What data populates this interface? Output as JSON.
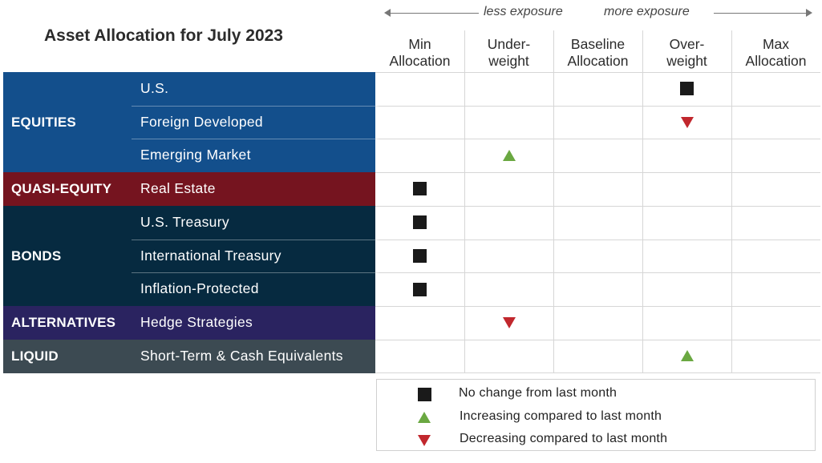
{
  "title": "Asset Allocation for July 2023",
  "exposure": {
    "less": "less exposure",
    "more": "more exposure"
  },
  "columns": [
    {
      "line1": "Min",
      "line2": "Allocation"
    },
    {
      "line1": "Under-",
      "line2": "weight"
    },
    {
      "line1": "Baseline",
      "line2": "Allocation"
    },
    {
      "line1": "Over-",
      "line2": "weight"
    },
    {
      "line1": "Max",
      "line2": "Allocation"
    }
  ],
  "categories": [
    {
      "label": "EQUITIES",
      "color": "#134f8c",
      "row_start": 0,
      "row_count": 3
    },
    {
      "label": "QUASI-EQUITY",
      "color": "#75141f",
      "row_start": 3,
      "row_count": 1
    },
    {
      "label": "BONDS",
      "color": "#062a40",
      "row_start": 4,
      "row_count": 3
    },
    {
      "label": "ALTERNATIVES",
      "color": "#2a2360",
      "row_start": 7,
      "row_count": 1
    },
    {
      "label": "LIQUID",
      "color": "#3c4a52",
      "row_start": 8,
      "row_count": 1
    }
  ],
  "chart_data": {
    "type": "table",
    "title": "Asset Allocation for July 2023",
    "columns": [
      "Min Allocation",
      "Underweight",
      "Baseline Allocation",
      "Overweight",
      "Max Allocation"
    ],
    "rows": [
      {
        "category": "EQUITIES",
        "asset": "U.S.",
        "position": 3,
        "change": "no change"
      },
      {
        "category": "EQUITIES",
        "asset": "Foreign Developed",
        "position": 3,
        "change": "decreasing"
      },
      {
        "category": "EQUITIES",
        "asset": "Emerging Market",
        "position": 1,
        "change": "increasing"
      },
      {
        "category": "QUASI-EQUITY",
        "asset": "Real Estate",
        "position": 0,
        "change": "no change"
      },
      {
        "category": "BONDS",
        "asset": "U.S. Treasury",
        "position": 0,
        "change": "no change"
      },
      {
        "category": "BONDS",
        "asset": "International Treasury",
        "position": 0,
        "change": "no change"
      },
      {
        "category": "BONDS",
        "asset": "Inflation-Protected",
        "position": 0,
        "change": "no change"
      },
      {
        "category": "ALTERNATIVES",
        "asset": "Hedge Strategies",
        "position": 1,
        "change": "decreasing"
      },
      {
        "category": "LIQUID",
        "asset": "Short-Term & Cash Equivalents",
        "position": 3,
        "change": "increasing"
      }
    ]
  },
  "legend": [
    {
      "symbol": "no change",
      "text": "No change from last month"
    },
    {
      "symbol": "increasing",
      "text": "Increasing compared to last month"
    },
    {
      "symbol": "decreasing",
      "text": "Decreasing compared to last month"
    }
  ],
  "colors": {
    "increasing": "#6aa841",
    "decreasing": "#c1272d",
    "no_change": "#1a1a1a"
  }
}
